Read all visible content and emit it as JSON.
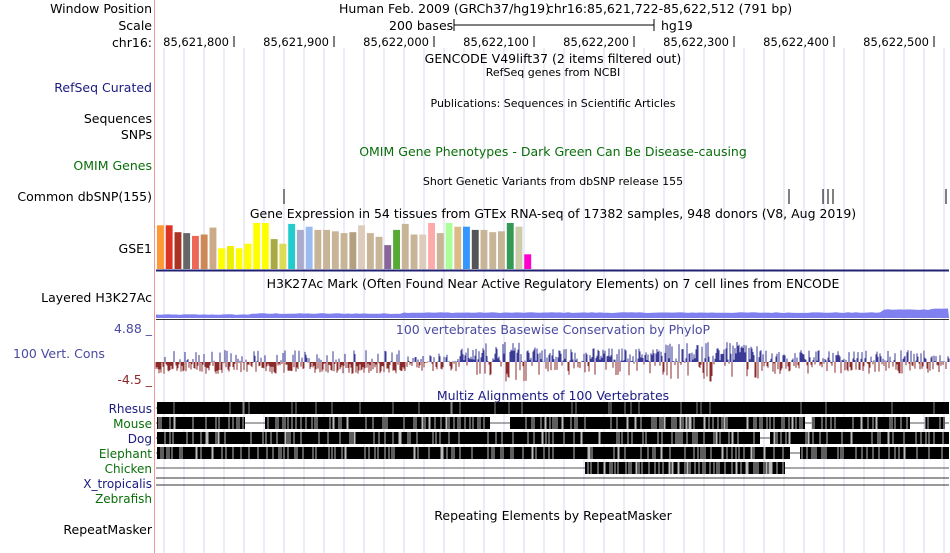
{
  "header": {
    "window_position_label": "Window Position",
    "scale_label": "Scale",
    "chrom_label": "chr16:",
    "assembly_text": "Human Feb. 2009 (GRCh37/hg19)",
    "position_text": "chr16:85,621,722-85,622,512 (791 bp)",
    "scale_text": "200 bases",
    "db_text": "hg19",
    "ticks": [
      "85,621,800",
      "85,621,900",
      "85,622,000",
      "85,622,100",
      "85,622,200",
      "85,622,300",
      "85,622,400",
      "85,622,500"
    ]
  },
  "tracks": {
    "gencode_title": "GENCODE V49lift37 (2 items filtered out)",
    "refseq_label": "RefSeq Curated",
    "refseq_title": "RefSeq genes from NCBI",
    "sequences_label": "Sequences",
    "publications_title": "Publications: Sequences in Scientific Articles",
    "snps_label": "SNPs",
    "omim_label": "OMIM Genes",
    "omim_title": "OMIM Gene Phenotypes - Dark Green Can Be Disease-causing",
    "dbsnp_title": "Short Genetic Variants from dbSNP release 155",
    "dbsnp_label": "Common dbSNP(155)",
    "gtex_title": "Gene Expression in 54 tissues from GTEx RNA-seq of 17382 samples, 948 donors (V8, Aug 2019)",
    "gse_label": "GSE1",
    "h3k27_title": "H3K27Ac Mark (Often Found Near Active Regulatory Elements) on 7 cell lines from ENCODE",
    "h3k27_label": "Layered H3K27Ac",
    "cons_max": "4.88 _",
    "cons_title": "100 vertebrates Basewise Conservation by PhyloP",
    "cons_label": "100 Vert. Cons",
    "cons_min": "-4.5 _",
    "multiz_title": "Multiz Alignments of 100 Vertebrates",
    "species": [
      {
        "name": "Rhesus",
        "color": "#1a1a80"
      },
      {
        "name": "Mouse",
        "color": "#0a6e0a"
      },
      {
        "name": "Dog",
        "color": "#1a1a80"
      },
      {
        "name": "Elephant",
        "color": "#0a6e0a"
      },
      {
        "name": "Chicken",
        "color": "#0a6e0a"
      },
      {
        "name": "X_tropicalis",
        "color": "#1a1a80"
      },
      {
        "name": "Zebrafish",
        "color": "#0a6e0a"
      }
    ],
    "repeatmasker_label": "RepeatMasker",
    "repeatmasker_title": "Repeating Elements by RepeatMasker"
  },
  "colors": {
    "cons_pos": "#3a3a96",
    "cons_neg": "#8b2a2a",
    "h3k27": "#8080ee",
    "gtex_line": "#202070",
    "grid": "#d8d8f0",
    "separator": "#ee9a9a"
  },
  "gtex_bar_colors": [
    "#ff9933",
    "#dd3322",
    "#aa3322",
    "#666666",
    "#ee6655",
    "#cc8855",
    "#ccaa88",
    "#ffff00",
    "#eeee00",
    "#ffff00",
    "#ffff00",
    "#ffff00",
    "#ffff00",
    "#aaaa44",
    "#dddd55",
    "#22cccc",
    "#aaaacc",
    "#99bbee",
    "#c8b496",
    "#c8b496",
    "#c8b496",
    "#c8b496",
    "#b4a080",
    "#ddccbb",
    "#c8b496",
    "#c8b496",
    "#886699",
    "#55aa33",
    "#c8b496",
    "#c8b496",
    "#ddccbb",
    "#ffaaaa",
    "#c8b496",
    "#aaff99",
    "#ddbb88",
    "#3399ff",
    "#555555",
    "#c8b496",
    "#c8b496",
    "#c8b496",
    "#339955",
    "#ccccaa",
    "#ff00cc"
  ],
  "gtex_bar_values": [
    0.95,
    0.95,
    0.8,
    0.78,
    0.72,
    0.75,
    0.9,
    0.45,
    0.5,
    0.45,
    0.55,
    1.0,
    1.0,
    0.65,
    0.55,
    0.98,
    0.85,
    0.92,
    0.85,
    0.85,
    0.82,
    0.78,
    0.8,
    0.95,
    0.78,
    0.7,
    0.52,
    0.85,
    0.98,
    0.75,
    0.75,
    1.0,
    0.78,
    1.0,
    0.92,
    0.92,
    0.85,
    0.85,
    0.8,
    0.82,
    1.0,
    0.92,
    0.32
  ]
}
